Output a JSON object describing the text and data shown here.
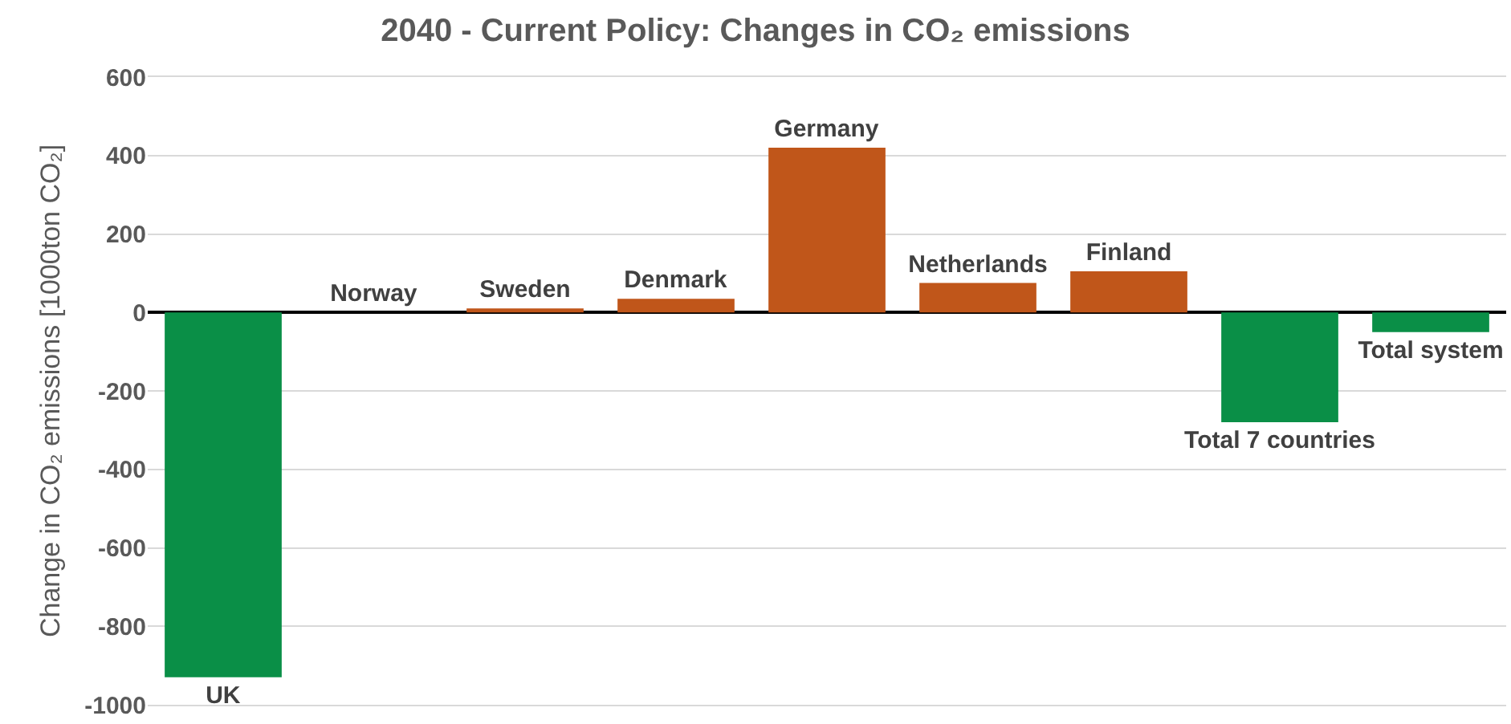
{
  "chart_data": {
    "type": "bar",
    "title": "2040 - Current Policy: Changes in CO₂ emissions",
    "ylabel": "Change in CO₂ emissions [1000ton CO₂]",
    "categories": [
      "UK",
      "Norway",
      "Sweden",
      "Denmark",
      "Germany",
      "Netherlands",
      "Finland",
      "Total 7 countries",
      "Total system"
    ],
    "values": [
      -930,
      0,
      10,
      35,
      420,
      75,
      105,
      -280,
      -50
    ],
    "colors": [
      "#0a8f47",
      "#c0561a",
      "#c0561a",
      "#c0561a",
      "#c0561a",
      "#c0561a",
      "#c0561a",
      "#0a8f47",
      "#0a8f47"
    ],
    "ylim": [
      -1000,
      600
    ],
    "yticks": [
      -1000,
      -800,
      -600,
      -400,
      -200,
      0,
      200,
      400,
      600
    ],
    "grid": "y",
    "tick_labels": "y"
  }
}
